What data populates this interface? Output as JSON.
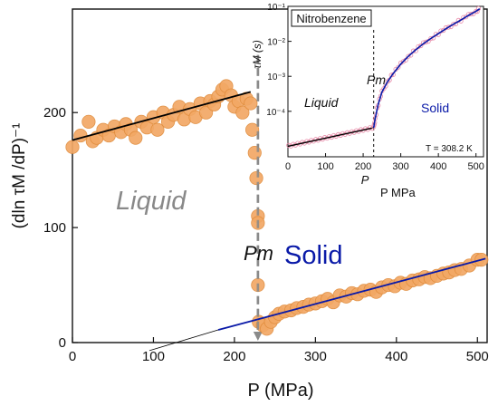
{
  "chart_data": [
    {
      "type": "scatter",
      "title": "",
      "xlabel": "P  (MPa)",
      "ylabel": "(dln τM /dP)⁻¹",
      "xlim": [
        0,
        512
      ],
      "ylim": [
        0,
        290
      ],
      "xticks": [
        "0",
        "100",
        "200",
        "300",
        "400",
        "500"
      ],
      "yticks": [
        "0",
        "100",
        "200"
      ],
      "annotations": {
        "liquid": "Liquid",
        "solid": "Solid",
        "pm": "Pm",
        "liquid_color": "#888888",
        "solid_color": "#0a1aa8"
      },
      "pm_pressure": 229,
      "marker_color": "#f2a865",
      "liquid_series": {
        "x": [
          0,
          10,
          20,
          25,
          30,
          38,
          45,
          52,
          60,
          66,
          72,
          78,
          85,
          92,
          100,
          105,
          112,
          118,
          125,
          132,
          138,
          145,
          152,
          158,
          165,
          170,
          175,
          180,
          185,
          190,
          196,
          200,
          205,
          210,
          215,
          220
        ],
        "y": [
          170,
          180,
          192,
          175,
          178,
          185,
          180,
          188,
          183,
          190,
          185,
          178,
          192,
          187,
          196,
          185,
          200,
          192,
          198,
          205,
          194,
          203,
          196,
          208,
          200,
          210,
          207,
          214,
          220,
          223,
          215,
          205,
          210,
          200,
          212,
          208
        ]
      },
      "transition_points": {
        "x": [
          222,
          225,
          227,
          229,
          229,
          229,
          230
        ],
        "y": [
          185,
          165,
          143,
          110,
          104,
          50,
          18
        ]
      },
      "solid_series": {
        "x": [
          235,
          240,
          245,
          250,
          255,
          262,
          270,
          277,
          285,
          292,
          300,
          308,
          315,
          322,
          330,
          338,
          345,
          352,
          360,
          368,
          375,
          382,
          390,
          398,
          405,
          412,
          420,
          428,
          435,
          442,
          450,
          458,
          465,
          472,
          480,
          490,
          500,
          505
        ],
        "y": [
          15,
          12,
          18,
          22,
          25,
          27,
          28,
          30,
          31,
          33,
          34,
          36,
          38,
          35,
          41,
          40,
          43,
          42,
          45,
          46,
          44,
          48,
          50,
          49,
          52,
          51,
          54,
          55,
          57,
          56,
          58,
          60,
          61,
          63,
          64,
          67,
          72,
          72
        ]
      },
      "fit_lines": [
        {
          "x": [
            0,
            220
          ],
          "y": [
            176,
            218
          ],
          "color": "#000000"
        },
        {
          "x": [
            180,
            510
          ],
          "y": [
            11,
            73
          ],
          "color": "#0a1aa8"
        },
        {
          "x": [
            95,
            180
          ],
          "y": [
            -7,
            11
          ],
          "color": "#000000"
        }
      ]
    },
    {
      "type": "scatter",
      "title": "Nitrobenzene",
      "xlabel": "P  MPa",
      "ylabel": "τM (s)",
      "yscale": "log",
      "xlim": [
        0,
        520
      ],
      "ylim_log10": [
        -5.3,
        -1
      ],
      "xticks": [
        "0",
        "100",
        "200",
        "300",
        "400",
        "500"
      ],
      "yticks": [
        "10⁻¹",
        "10⁻²",
        "10⁻³",
        "10⁻⁴"
      ],
      "ytick_values_log10": [
        -1,
        -2,
        -3,
        -4
      ],
      "annotations": {
        "liquid": "Liquid",
        "solid": "Solid",
        "pm": "Pm",
        "temperature": "T = 308.2 K",
        "p_axis": "P"
      },
      "pm_pressure": 228,
      "liquid_fit": {
        "x": [
          0,
          228
        ],
        "log10_y": [
          -5.0,
          -4.47
        ]
      },
      "solid_curve": {
        "x": [
          228,
          232,
          240,
          250,
          265,
          280,
          300,
          320,
          340,
          360,
          380,
          400,
          420,
          440,
          460,
          480,
          500,
          510
        ],
        "log10_y": [
          -4.47,
          -4.2,
          -3.8,
          -3.45,
          -3.15,
          -2.92,
          -2.65,
          -2.43,
          -2.24,
          -2.07,
          -1.92,
          -1.78,
          -1.64,
          -1.51,
          -1.39,
          -1.26,
          -1.14,
          -1.07
        ]
      }
    }
  ]
}
